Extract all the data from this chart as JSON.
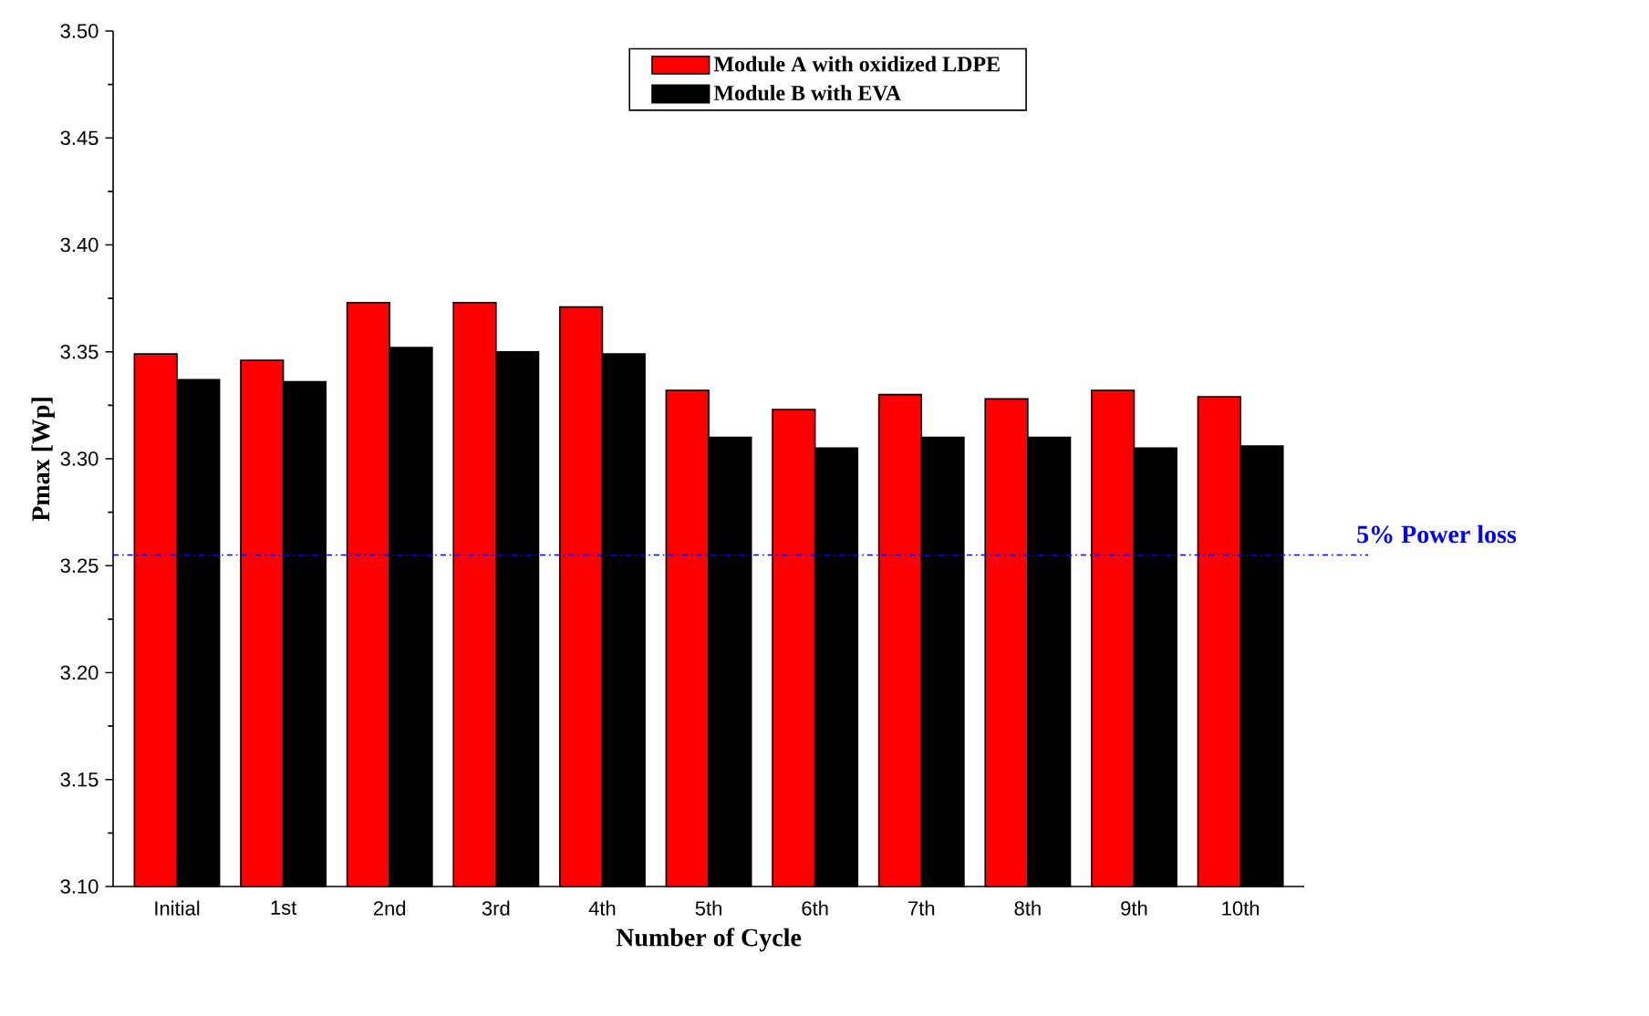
{
  "chart_data": {
    "type": "bar",
    "xlabel": "Number of Cycle",
    "ylabel": "Pmax [Wp]",
    "categories": [
      "Initial",
      "1st",
      "2nd",
      "3rd",
      "4th",
      "5th",
      "6th",
      "7th",
      "8th",
      "9th",
      "10th"
    ],
    "series": [
      {
        "name": "Module A with oxidized LDPE",
        "color": "#ff0000",
        "values": [
          3.349,
          3.346,
          3.373,
          3.373,
          3.371,
          3.332,
          3.323,
          3.33,
          3.328,
          3.332,
          3.329
        ]
      },
      {
        "name": "Module B with EVA",
        "color": "#000000",
        "values": [
          3.337,
          3.336,
          3.352,
          3.35,
          3.349,
          3.31,
          3.305,
          3.31,
          3.31,
          3.305,
          3.306
        ]
      }
    ],
    "ylim": [
      3.1,
      3.5
    ],
    "yticks": [
      {
        "value": 3.1,
        "label": "3.10"
      },
      3.15,
      {
        "value": 3.2,
        "label": "3.20"
      },
      3.25,
      {
        "value": 3.3,
        "label": "3.30"
      },
      3.35,
      {
        "value": 3.4,
        "label": "3.40"
      },
      3.45,
      {
        "value": 3.5,
        "label": "3.50"
      }
    ],
    "ref_lines": [
      {
        "axis": "y",
        "value": 3.255,
        "label": "5% Power loss",
        "color": "#0000ff",
        "line_style": "dashdotted"
      }
    ],
    "legend": "top"
  }
}
